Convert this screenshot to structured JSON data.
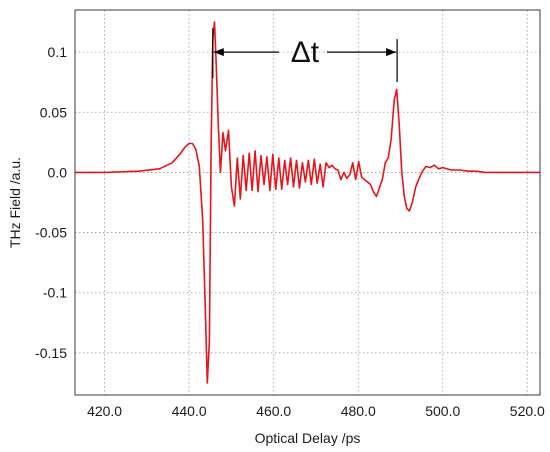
{
  "chart_data": {
    "type": "line",
    "title": "",
    "xlabel": "Optical Delay /ps",
    "ylabel": "THz Field /a.u.",
    "xlim": [
      413,
      523
    ],
    "ylim": [
      -0.185,
      0.135
    ],
    "grid": true,
    "grid_style": "dotted",
    "legend": "none",
    "x_ticks": [
      420.0,
      440.0,
      460.0,
      480.0,
      500.0,
      520.0
    ],
    "x_tick_labels": [
      "420.0",
      "440.0",
      "460.0",
      "480.0",
      "500.0",
      "520.0"
    ],
    "y_ticks": [
      0.1,
      0.05,
      0.0,
      -0.05,
      -0.1,
      -0.15
    ],
    "y_tick_labels": [
      "0.1",
      "0.05",
      "0.0",
      "-0.05",
      "-0.1",
      "-0.15"
    ],
    "colors": {
      "series": "#e8141b",
      "annotation": "#000000",
      "grid": "#9a9a9a"
    },
    "series": [
      {
        "color": "#e8141b",
        "x": [
          413.0,
          420.0,
          428.0,
          433.0,
          436.0,
          438.0,
          439.0,
          440.0,
          440.8,
          441.6,
          442.4,
          443.2,
          443.8,
          444.3,
          444.8,
          445.2,
          445.6,
          446.0,
          446.4,
          446.9,
          447.4,
          448.0,
          448.6,
          449.3,
          450.0,
          450.7,
          451.4,
          452.1,
          452.8,
          453.5,
          454.2,
          454.9,
          455.6,
          456.3,
          457.0,
          457.7,
          458.4,
          459.1,
          459.8,
          460.5,
          461.2,
          461.9,
          462.6,
          463.3,
          464.0,
          464.7,
          465.4,
          466.1,
          466.8,
          467.5,
          468.2,
          468.9,
          469.6,
          470.3,
          471.0,
          471.7,
          472.4,
          473.1,
          473.8,
          474.5,
          475.2,
          475.9,
          476.6,
          477.3,
          478.0,
          478.7,
          479.4,
          480.1,
          480.8,
          481.5,
          482.2,
          482.9,
          483.6,
          484.3,
          485.0,
          485.7,
          486.4,
          487.1,
          487.8,
          488.5,
          489.1,
          489.7,
          490.3,
          490.9,
          491.5,
          492.1,
          492.8,
          493.6,
          494.4,
          495.2,
          496.0,
          497.0,
          498.0,
          499.0,
          500.0,
          502.0,
          504.0,
          506.0,
          508.0,
          510.0,
          514.0,
          518.0,
          523.0
        ],
        "y": [
          0.0,
          0.0,
          0.001,
          0.003,
          0.008,
          0.016,
          0.021,
          0.024,
          0.024,
          0.019,
          0.005,
          -0.04,
          -0.11,
          -0.175,
          -0.14,
          0.02,
          0.11,
          0.125,
          0.09,
          0.04,
          0.0,
          0.033,
          0.018,
          0.035,
          -0.012,
          -0.028,
          0.012,
          -0.022,
          0.014,
          -0.015,
          0.016,
          -0.015,
          0.018,
          -0.016,
          0.014,
          -0.01,
          0.013,
          -0.015,
          0.015,
          -0.014,
          0.012,
          -0.014,
          0.01,
          -0.01,
          0.012,
          -0.012,
          0.01,
          -0.013,
          0.008,
          -0.008,
          0.01,
          -0.01,
          0.011,
          -0.009,
          0.007,
          -0.012,
          0.008,
          0.004,
          0.006,
          0.003,
          0.002,
          -0.006,
          0.0,
          -0.005,
          -0.002,
          0.008,
          -0.006,
          0.009,
          -0.004,
          -0.006,
          -0.008,
          -0.01,
          -0.016,
          -0.02,
          -0.013,
          -0.006,
          0.008,
          0.012,
          0.028,
          0.06,
          0.069,
          0.04,
          0.0,
          -0.02,
          -0.03,
          -0.032,
          -0.025,
          -0.012,
          -0.005,
          0.001,
          0.005,
          0.004,
          0.006,
          0.003,
          0.004,
          0.002,
          0.002,
          0.001,
          0.001,
          0.0,
          0.0,
          0.0,
          0.0
        ]
      }
    ],
    "annotations": [
      {
        "text": "Δt",
        "x_start": 445.6,
        "x_end": 489.2,
        "y": 0.1
      }
    ]
  }
}
